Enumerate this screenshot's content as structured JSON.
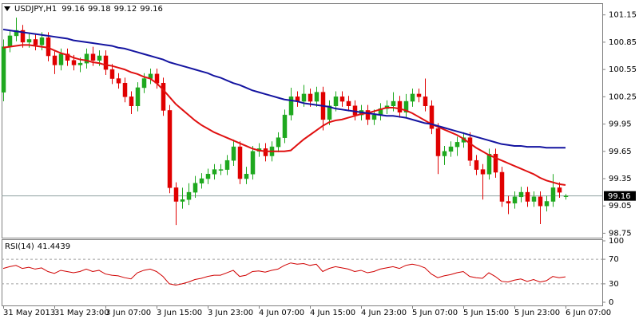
{
  "chart_data": [
    {
      "type": "candlestick",
      "symbol": "USDJPY,H1",
      "categories": [
        "31 May 2013",
        null,
        null,
        null,
        null,
        null,
        null,
        null,
        "31 May 23:00",
        null,
        null,
        null,
        null,
        null,
        null,
        null,
        "3 Jun 07:00",
        null,
        null,
        null,
        null,
        null,
        null,
        null,
        "3 Jun 15:00",
        null,
        null,
        null,
        null,
        null,
        null,
        null,
        "3 Jun 23:00",
        null,
        null,
        null,
        null,
        null,
        null,
        null,
        "4 Jun 07:00",
        null,
        null,
        null,
        null,
        null,
        null,
        null,
        "4 Jun 15:00",
        null,
        null,
        null,
        null,
        null,
        null,
        null,
        "4 Jun 23:00",
        null,
        null,
        null,
        null,
        null,
        null,
        null,
        "5 Jun 07:00",
        null,
        null,
        null,
        null,
        null,
        null,
        null,
        "5 Jun 15:00",
        null,
        null,
        null,
        null,
        null,
        null,
        null,
        "5 Jun 23:00",
        null,
        null,
        null,
        null,
        null,
        null,
        null,
        "6 Jun 07:00"
      ],
      "open": [
        100.3,
        100.8,
        100.92,
        100.98,
        100.85,
        100.88,
        100.82,
        100.9,
        100.7,
        100.6,
        100.72,
        100.65,
        100.6,
        100.62,
        100.72,
        100.65,
        100.7,
        100.55,
        100.45,
        100.4,
        100.25,
        100.15,
        100.35,
        100.45,
        100.5,
        100.4,
        100.1,
        99.25,
        99.1,
        99.12,
        99.2,
        99.3,
        99.35,
        99.4,
        99.45,
        99.45,
        99.55,
        99.7,
        99.35,
        99.4,
        99.65,
        99.68,
        99.6,
        99.7,
        99.8,
        100.05,
        100.25,
        100.2,
        100.28,
        100.2,
        100.3,
        100.0,
        100.15,
        100.25,
        100.2,
        100.15,
        100.05,
        100.1,
        100.0,
        100.05,
        100.12,
        100.15,
        100.2,
        100.08,
        100.2,
        100.28,
        100.25,
        100.15,
        99.9,
        99.6,
        99.65,
        99.7,
        99.75,
        99.8,
        99.55,
        99.45,
        99.4,
        99.62,
        99.42,
        99.1,
        99.08,
        99.15,
        99.2,
        99.1,
        99.15,
        99.05,
        99.1,
        99.25,
        99.16
      ],
      "high": [
        100.88,
        100.98,
        101.12,
        101.04,
        100.94,
        100.94,
        100.96,
        100.96,
        100.76,
        100.78,
        100.78,
        100.71,
        100.68,
        100.78,
        100.8,
        100.76,
        100.76,
        100.61,
        100.51,
        100.46,
        100.31,
        100.41,
        100.51,
        100.56,
        100.56,
        100.46,
        100.16,
        99.31,
        99.25,
        99.3,
        99.38,
        99.41,
        99.46,
        99.51,
        99.51,
        99.61,
        99.78,
        99.76,
        99.48,
        99.71,
        99.74,
        99.74,
        99.76,
        99.86,
        100.11,
        100.35,
        100.31,
        100.38,
        100.34,
        100.36,
        100.36,
        100.21,
        100.31,
        100.31,
        100.26,
        100.21,
        100.16,
        100.16,
        100.11,
        100.18,
        100.21,
        100.3,
        100.26,
        100.28,
        100.34,
        100.34,
        100.45,
        100.21,
        99.96,
        99.71,
        99.76,
        99.81,
        99.86,
        99.86,
        99.61,
        99.51,
        99.68,
        99.68,
        99.48,
        99.16,
        99.21,
        99.26,
        99.26,
        99.21,
        99.21,
        99.16,
        99.4,
        99.31,
        99.18
      ],
      "low": [
        100.2,
        100.74,
        100.86,
        100.79,
        100.79,
        100.76,
        100.76,
        100.64,
        100.5,
        100.54,
        100.59,
        100.54,
        100.52,
        100.56,
        100.59,
        100.59,
        100.49,
        100.39,
        100.34,
        100.19,
        100.06,
        100.09,
        100.29,
        100.39,
        100.34,
        100.04,
        99.19,
        98.84,
        99.02,
        99.06,
        99.14,
        99.24,
        99.29,
        99.34,
        99.39,
        99.39,
        99.49,
        99.29,
        99.29,
        99.34,
        99.59,
        99.54,
        99.54,
        99.64,
        99.74,
        99.99,
        100.14,
        100.14,
        100.14,
        100.14,
        99.88,
        99.94,
        100.09,
        100.14,
        100.09,
        99.99,
        99.99,
        99.94,
        99.94,
        99.99,
        100.06,
        100.09,
        100.02,
        100.02,
        100.14,
        100.19,
        100.09,
        99.84,
        99.4,
        99.5,
        99.59,
        99.6,
        99.69,
        99.49,
        99.39,
        99.12,
        99.34,
        99.36,
        99.04,
        98.96,
        99.02,
        99.09,
        99.04,
        99.04,
        98.85,
        98.99,
        99.04,
        99.14,
        99.12
      ],
      "close": [
        100.8,
        100.92,
        100.98,
        100.85,
        100.88,
        100.82,
        100.9,
        100.7,
        100.6,
        100.72,
        100.65,
        100.6,
        100.62,
        100.72,
        100.65,
        100.7,
        100.55,
        100.45,
        100.4,
        100.25,
        100.15,
        100.35,
        100.45,
        100.5,
        100.4,
        100.1,
        99.25,
        99.1,
        99.12,
        99.2,
        99.3,
        99.35,
        99.4,
        99.45,
        99.45,
        99.55,
        99.7,
        99.35,
        99.4,
        99.65,
        99.68,
        99.6,
        99.7,
        99.8,
        100.05,
        100.25,
        100.2,
        100.28,
        100.2,
        100.3,
        100.0,
        100.15,
        100.25,
        100.2,
        100.15,
        100.05,
        100.1,
        100.0,
        100.05,
        100.12,
        100.15,
        100.2,
        100.08,
        100.2,
        100.28,
        100.25,
        100.15,
        99.9,
        99.6,
        99.65,
        99.7,
        99.75,
        99.8,
        99.55,
        99.45,
        99.4,
        99.62,
        99.42,
        99.1,
        99.08,
        99.15,
        99.2,
        99.1,
        99.15,
        99.05,
        99.1,
        99.25,
        99.2,
        99.16
      ],
      "up_color": "#1fa81f",
      "down_color": "#e00000",
      "series": [
        {
          "color": "#e01010",
          "values": [
            100.79,
            100.8,
            100.81,
            100.82,
            100.82,
            100.81,
            100.8,
            100.79,
            100.76,
            100.73,
            100.71,
            100.68,
            100.66,
            100.65,
            100.63,
            100.62,
            100.6,
            100.59,
            100.57,
            100.55,
            100.52,
            100.5,
            100.47,
            100.45,
            100.4,
            100.33,
            100.25,
            100.17,
            100.11,
            100.05,
            99.99,
            99.94,
            99.9,
            99.86,
            99.83,
            99.8,
            99.77,
            99.74,
            99.71,
            99.68,
            99.66,
            99.65,
            99.65,
            99.65,
            99.65,
            99.66,
            99.72,
            99.78,
            99.83,
            99.88,
            99.93,
            99.97,
            99.99,
            100.0,
            100.02,
            100.04,
            100.06,
            100.07,
            100.09,
            100.11,
            100.13,
            100.13,
            100.12,
            100.1,
            100.07,
            100.03,
            99.99,
            99.95,
            99.92,
            99.89,
            99.86,
            99.83,
            99.79,
            99.74,
            99.69,
            99.65,
            99.61,
            99.58,
            99.55,
            99.52,
            99.49,
            99.46,
            99.43,
            99.4,
            99.36,
            99.33,
            99.31,
            99.29,
            99.28
          ]
        },
        {
          "color": "#1414a0",
          "values": [
            100.99,
            100.98,
            100.97,
            100.96,
            100.95,
            100.94,
            100.93,
            100.92,
            100.91,
            100.9,
            100.89,
            100.87,
            100.86,
            100.85,
            100.84,
            100.83,
            100.82,
            100.81,
            100.79,
            100.78,
            100.76,
            100.74,
            100.72,
            100.7,
            100.68,
            100.66,
            100.63,
            100.61,
            100.59,
            100.57,
            100.55,
            100.53,
            100.51,
            100.48,
            100.46,
            100.43,
            100.4,
            100.38,
            100.35,
            100.32,
            100.3,
            100.28,
            100.26,
            100.24,
            100.22,
            100.21,
            100.2,
            100.18,
            100.17,
            100.16,
            100.15,
            100.14,
            100.12,
            100.11,
            100.1,
            100.09,
            100.08,
            100.07,
            100.06,
            100.05,
            100.04,
            100.04,
            100.03,
            100.02,
            100.0,
            99.98,
            99.96,
            99.95,
            99.93,
            99.91,
            99.89,
            99.87,
            99.85,
            99.83,
            99.81,
            99.79,
            99.77,
            99.75,
            99.73,
            99.72,
            99.71,
            99.71,
            99.7,
            99.7,
            99.7,
            99.69,
            99.69,
            99.69,
            99.69
          ]
        }
      ],
      "ylim": [
        98.71,
        101.27
      ],
      "yticks": [
        98.75,
        99.05,
        99.35,
        99.65,
        99.95,
        100.25,
        100.55,
        100.85,
        101.15
      ]
    },
    {
      "type": "line",
      "series": [
        {
          "name": "RSI(14)",
          "color": "#d00000",
          "values": [
            55,
            58,
            60,
            55,
            57,
            54,
            56,
            50,
            47,
            52,
            50,
            48,
            50,
            54,
            50,
            52,
            46,
            44,
            43,
            40,
            38,
            48,
            52,
            54,
            50,
            42,
            30,
            28,
            30,
            33,
            37,
            39,
            42,
            44,
            44,
            48,
            52,
            42,
            44,
            50,
            51,
            49,
            52,
            54,
            60,
            64,
            62,
            63,
            60,
            62,
            50,
            55,
            58,
            56,
            54,
            50,
            52,
            48,
            50,
            54,
            56,
            58,
            55,
            60,
            62,
            60,
            56,
            46,
            40,
            43,
            45,
            48,
            50,
            42,
            40,
            39,
            48,
            42,
            34,
            33,
            36,
            38,
            34,
            37,
            33,
            35,
            42,
            40,
            41.4439
          ]
        }
      ],
      "ylim": [
        0,
        100
      ],
      "yticks": [
        0,
        30,
        70,
        100
      ]
    }
  ]
}
